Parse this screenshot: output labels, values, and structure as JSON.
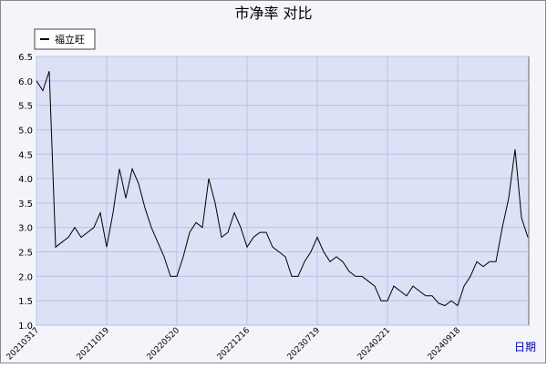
{
  "chart_data": {
    "type": "line",
    "title": "市净率  对比",
    "x_label": "日期",
    "categories": [
      "20210317",
      null,
      null,
      null,
      null,
      null,
      null,
      null,
      null,
      null,
      null,
      "20211019",
      null,
      null,
      null,
      null,
      null,
      null,
      null,
      null,
      null,
      null,
      "20220520",
      null,
      null,
      null,
      null,
      null,
      null,
      null,
      null,
      null,
      null,
      "20221216",
      null,
      null,
      null,
      null,
      null,
      null,
      null,
      null,
      null,
      null,
      "20230719",
      null,
      null,
      null,
      null,
      null,
      null,
      null,
      null,
      null,
      null,
      "20240221",
      null,
      null,
      null,
      null,
      null,
      null,
      null,
      null,
      null,
      null,
      "20240918",
      null,
      null,
      null,
      null,
      null,
      null,
      null,
      null,
      null,
      null,
      null
    ],
    "series": [
      {
        "name": "福立旺",
        "color": "#000000",
        "values": [
          6.0,
          5.8,
          6.2,
          2.6,
          2.7,
          2.8,
          3.0,
          2.8,
          2.9,
          3.0,
          3.3,
          2.6,
          3.3,
          4.2,
          3.6,
          4.2,
          3.9,
          3.4,
          3.0,
          2.7,
          2.4,
          2.0,
          2.0,
          2.4,
          2.9,
          3.1,
          3.0,
          4.0,
          3.5,
          2.8,
          2.9,
          3.3,
          3.0,
          2.6,
          2.8,
          2.9,
          2.9,
          2.6,
          2.5,
          2.4,
          2.0,
          2.0,
          2.3,
          2.5,
          2.8,
          2.5,
          2.3,
          2.4,
          2.3,
          2.1,
          2.0,
          2.0,
          1.9,
          1.8,
          1.5,
          1.5,
          1.8,
          1.7,
          1.6,
          1.8,
          1.7,
          1.6,
          1.6,
          1.45,
          1.4,
          1.5,
          1.4,
          1.8,
          2.0,
          2.3,
          2.2,
          2.3,
          2.3,
          3.0,
          3.6,
          4.6,
          3.2,
          2.8
        ]
      }
    ],
    "ylim": [
      1,
      6.5
    ],
    "yticks": [
      {
        "value": 1,
        "label": "1.0"
      },
      1.5,
      {
        "value": 2,
        "label": "2.0"
      },
      2.5,
      {
        "value": 3,
        "label": "3.0"
      },
      3.5,
      {
        "value": 4,
        "label": "4.0"
      },
      4.5,
      {
        "value": 5,
        "label": "5.0"
      },
      5.5,
      {
        "value": 6,
        "label": "6.0"
      },
      6.5
    ],
    "grid": true,
    "legend": "top-left"
  }
}
